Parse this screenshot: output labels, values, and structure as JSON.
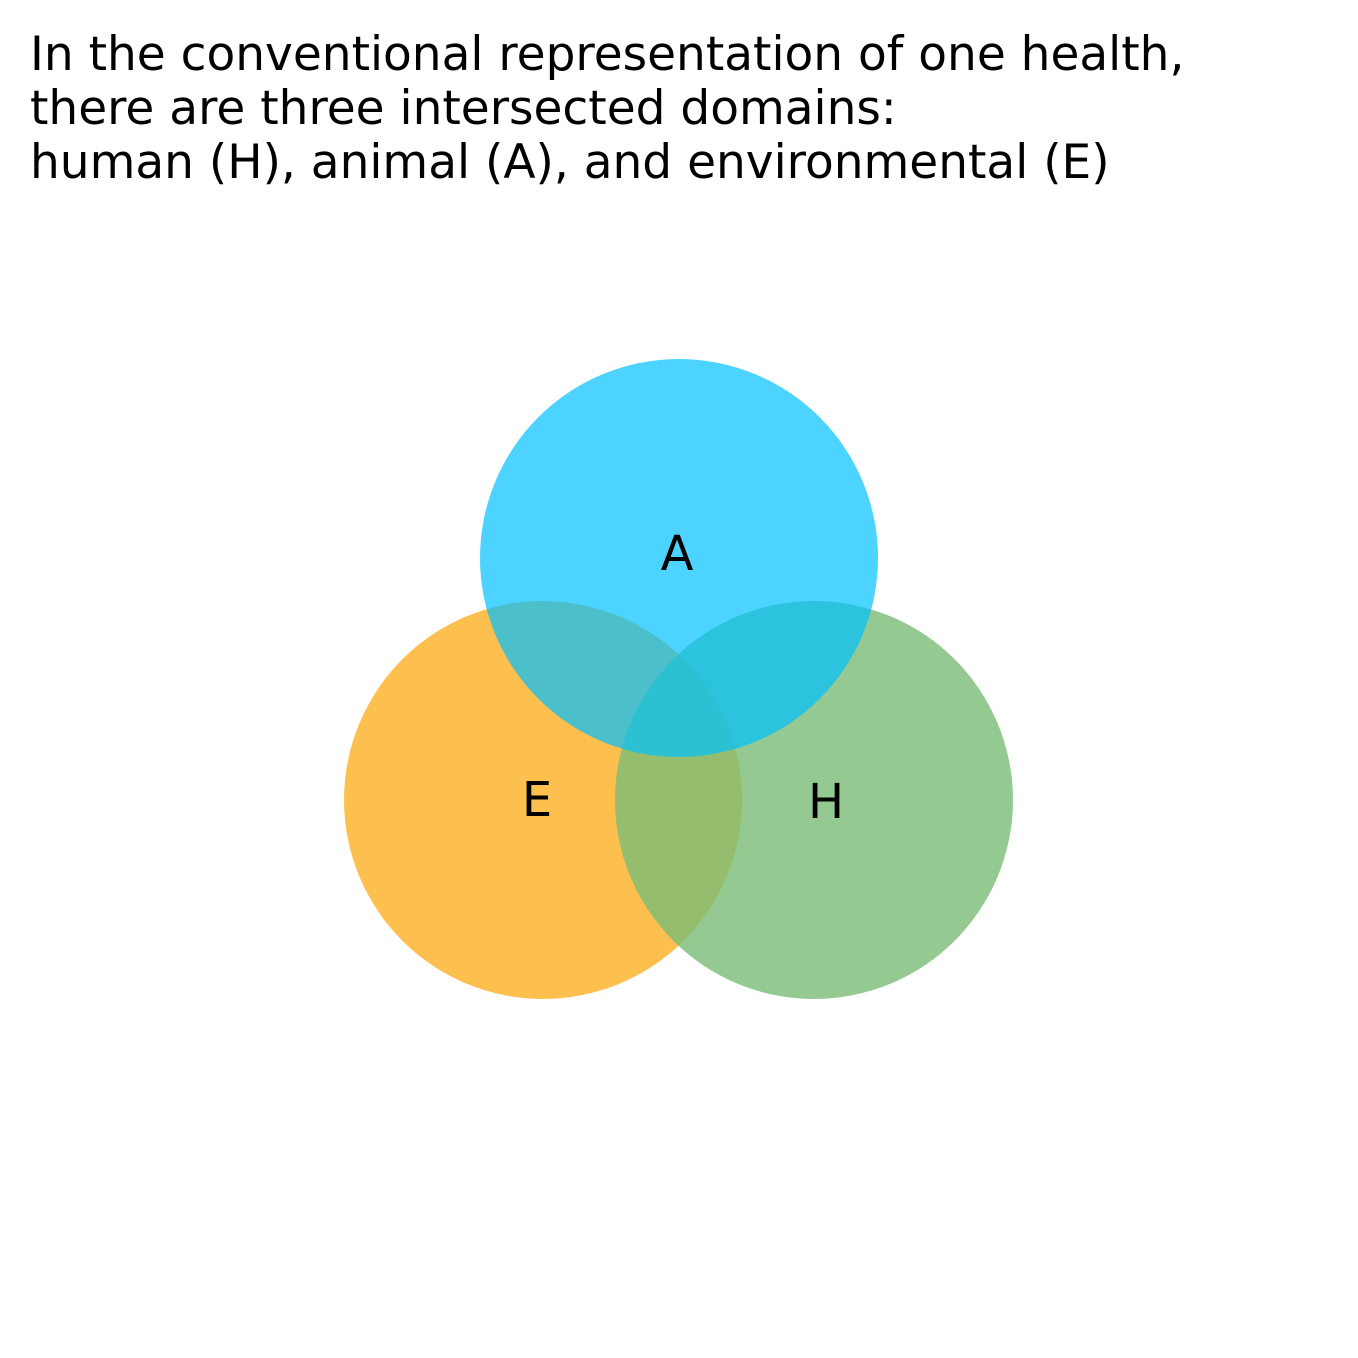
{
  "caption": {
    "lines": [
      "In the conventional representation of one health,",
      "there are three intersected domains:",
      "human (H), animal (A), and environmental (E)"
    ]
  },
  "venn": {
    "sets": [
      {
        "key": "environment",
        "label": "E",
        "color": "#FDB022"
      },
      {
        "key": "human",
        "label": "H",
        "color": "#79BD76"
      },
      {
        "key": "animal",
        "label": "A",
        "color": "#00C0FF"
      }
    ]
  }
}
